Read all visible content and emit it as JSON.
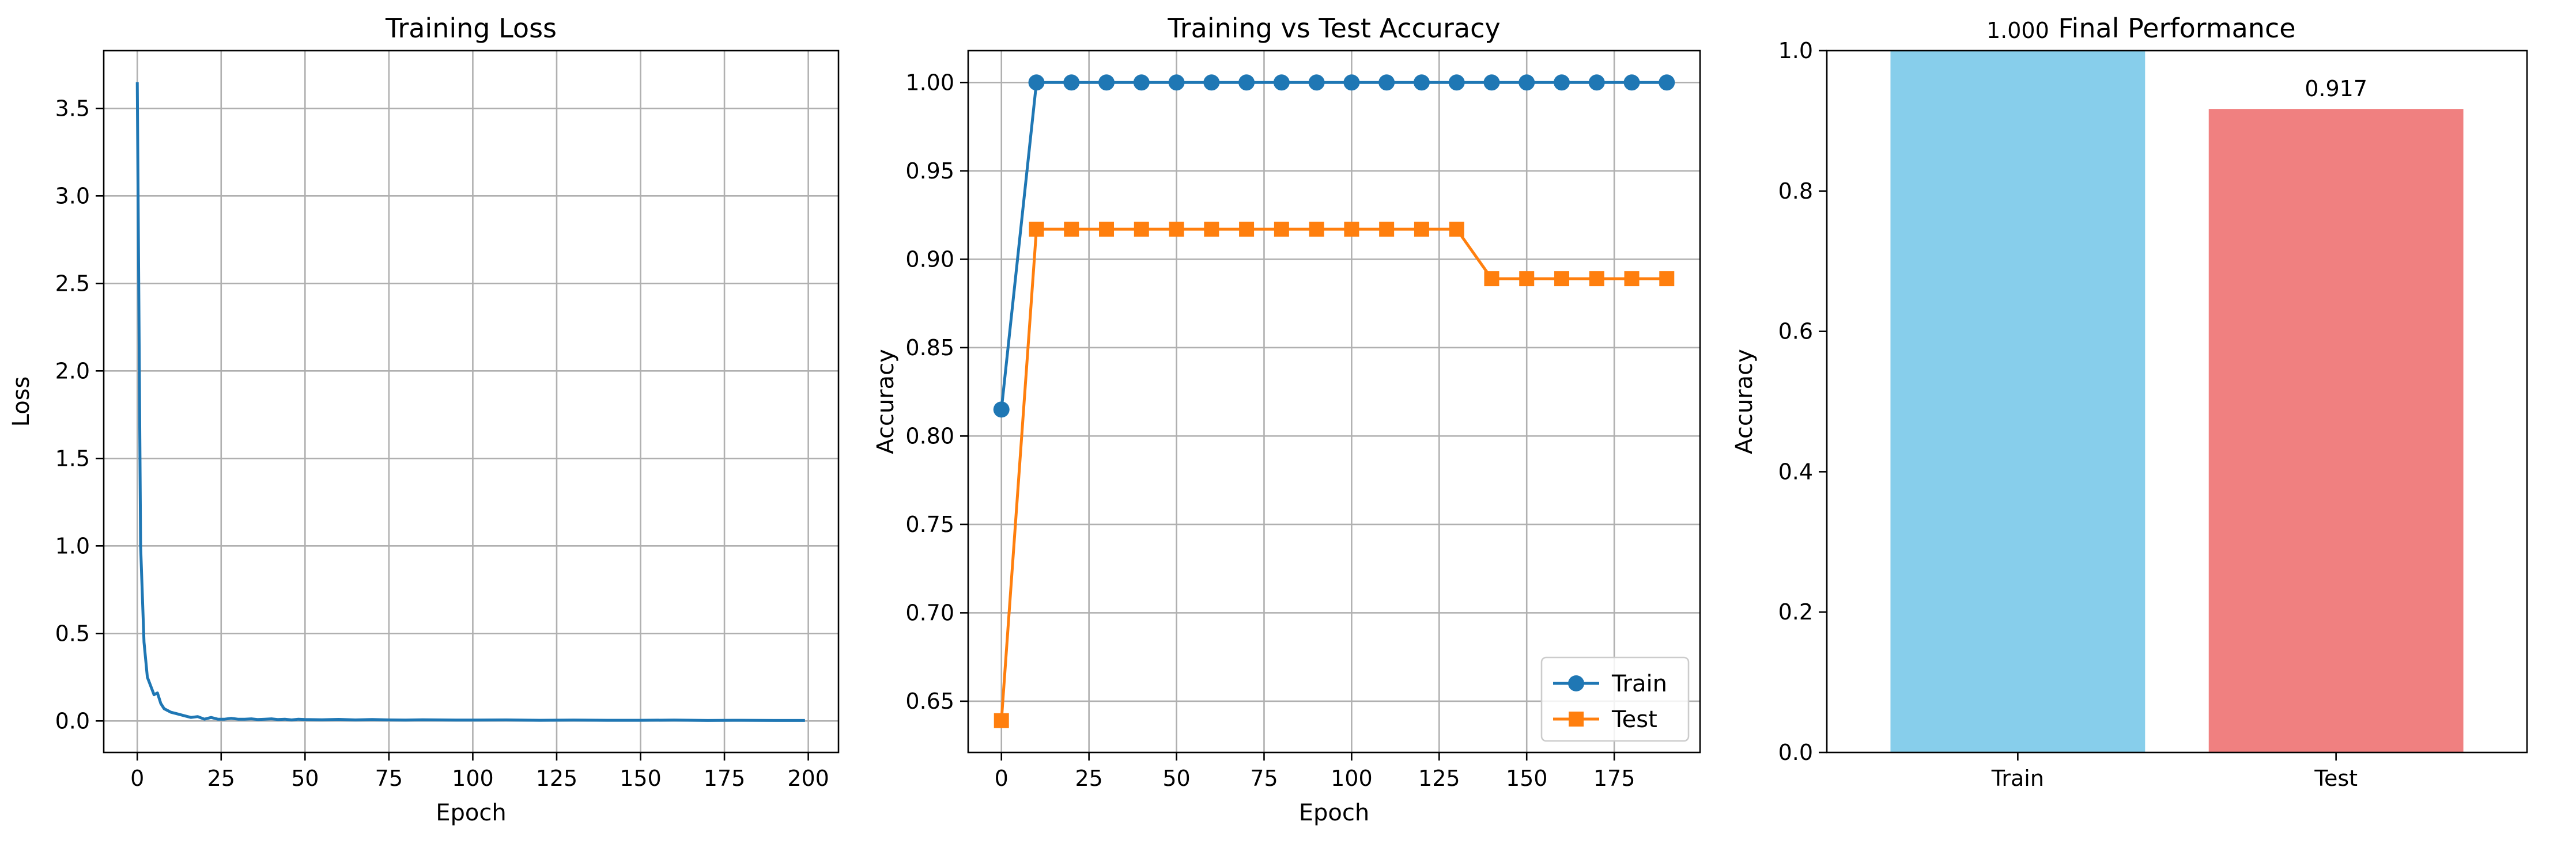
{
  "chart_data": [
    {
      "type": "line",
      "title": "Training Loss",
      "xlabel": "Epoch",
      "ylabel": "Loss",
      "xlim": [
        -10,
        209
      ],
      "ylim": [
        -0.18,
        3.83
      ],
      "xticks": [
        0,
        25,
        50,
        75,
        100,
        125,
        150,
        175,
        200
      ],
      "yticks": [
        "0.0",
        "0.5",
        "1.0",
        "1.5",
        "2.0",
        "2.5",
        "3.0",
        "3.5"
      ],
      "grid": true,
      "color": "#1f77b4",
      "series": [
        {
          "x": [
            0,
            1,
            2,
            3,
            4,
            5,
            6,
            7,
            8,
            9,
            10,
            12,
            14,
            16,
            18,
            20,
            22,
            24,
            26,
            28,
            30,
            32,
            34,
            36,
            38,
            40,
            42,
            44,
            46,
            48,
            50,
            55,
            60,
            65,
            70,
            75,
            80,
            85,
            90,
            95,
            100,
            110,
            120,
            130,
            140,
            150,
            160,
            170,
            180,
            190,
            199
          ],
          "y": [
            3.65,
            1.0,
            0.45,
            0.25,
            0.2,
            0.15,
            0.16,
            0.1,
            0.07,
            0.06,
            0.05,
            0.04,
            0.03,
            0.02,
            0.025,
            0.01,
            0.02,
            0.01,
            0.01,
            0.015,
            0.01,
            0.01,
            0.012,
            0.008,
            0.01,
            0.012,
            0.008,
            0.01,
            0.006,
            0.01,
            0.008,
            0.007,
            0.009,
            0.006,
            0.008,
            0.006,
            0.005,
            0.007,
            0.006,
            0.005,
            0.005,
            0.006,
            0.004,
            0.005,
            0.004,
            0.004,
            0.005,
            0.003,
            0.004,
            0.003,
            0.003
          ]
        }
      ]
    },
    {
      "type": "line",
      "title": "Training vs Test Accuracy",
      "xlabel": "Epoch",
      "ylabel": "Accuracy",
      "xlim": [
        -9.5,
        199.5
      ],
      "ylim": [
        0.621,
        1.018
      ],
      "xticks": [
        0,
        25,
        50,
        75,
        100,
        125,
        150,
        175
      ],
      "yticks": [
        "0.65",
        "0.70",
        "0.75",
        "0.80",
        "0.85",
        "0.90",
        "0.95",
        "1.00"
      ],
      "grid": true,
      "legend": "lower-right",
      "series": [
        {
          "name": "Train",
          "marker": "circle",
          "color": "#1f77b4",
          "x": [
            0,
            10,
            20,
            30,
            40,
            50,
            60,
            70,
            80,
            90,
            100,
            110,
            120,
            130,
            140,
            150,
            160,
            170,
            180,
            190
          ],
          "y": [
            0.815,
            1.0,
            1.0,
            1.0,
            1.0,
            1.0,
            1.0,
            1.0,
            1.0,
            1.0,
            1.0,
            1.0,
            1.0,
            1.0,
            1.0,
            1.0,
            1.0,
            1.0,
            1.0,
            1.0
          ]
        },
        {
          "name": "Test",
          "marker": "square",
          "color": "#ff7f0e",
          "x": [
            0,
            10,
            20,
            30,
            40,
            50,
            60,
            70,
            80,
            90,
            100,
            110,
            120,
            130,
            140,
            150,
            160,
            170,
            180,
            190
          ],
          "y": [
            0.639,
            0.917,
            0.917,
            0.917,
            0.917,
            0.917,
            0.917,
            0.917,
            0.917,
            0.917,
            0.917,
            0.917,
            0.917,
            0.917,
            0.889,
            0.889,
            0.889,
            0.889,
            0.889,
            0.889
          ]
        }
      ]
    },
    {
      "type": "bar",
      "title": "Final Performance",
      "ylabel": "Accuracy",
      "ylim": [
        0,
        1.0
      ],
      "yticks": [
        "0.0",
        "0.2",
        "0.4",
        "0.6",
        "0.8",
        "1.0"
      ],
      "categories": [
        "Train",
        "Test"
      ],
      "values": [
        1.0,
        0.917
      ],
      "value_labels": [
        "1.000",
        "0.917"
      ],
      "colors": [
        "#87ceeb",
        "#f08080"
      ],
      "grid": false
    }
  ]
}
